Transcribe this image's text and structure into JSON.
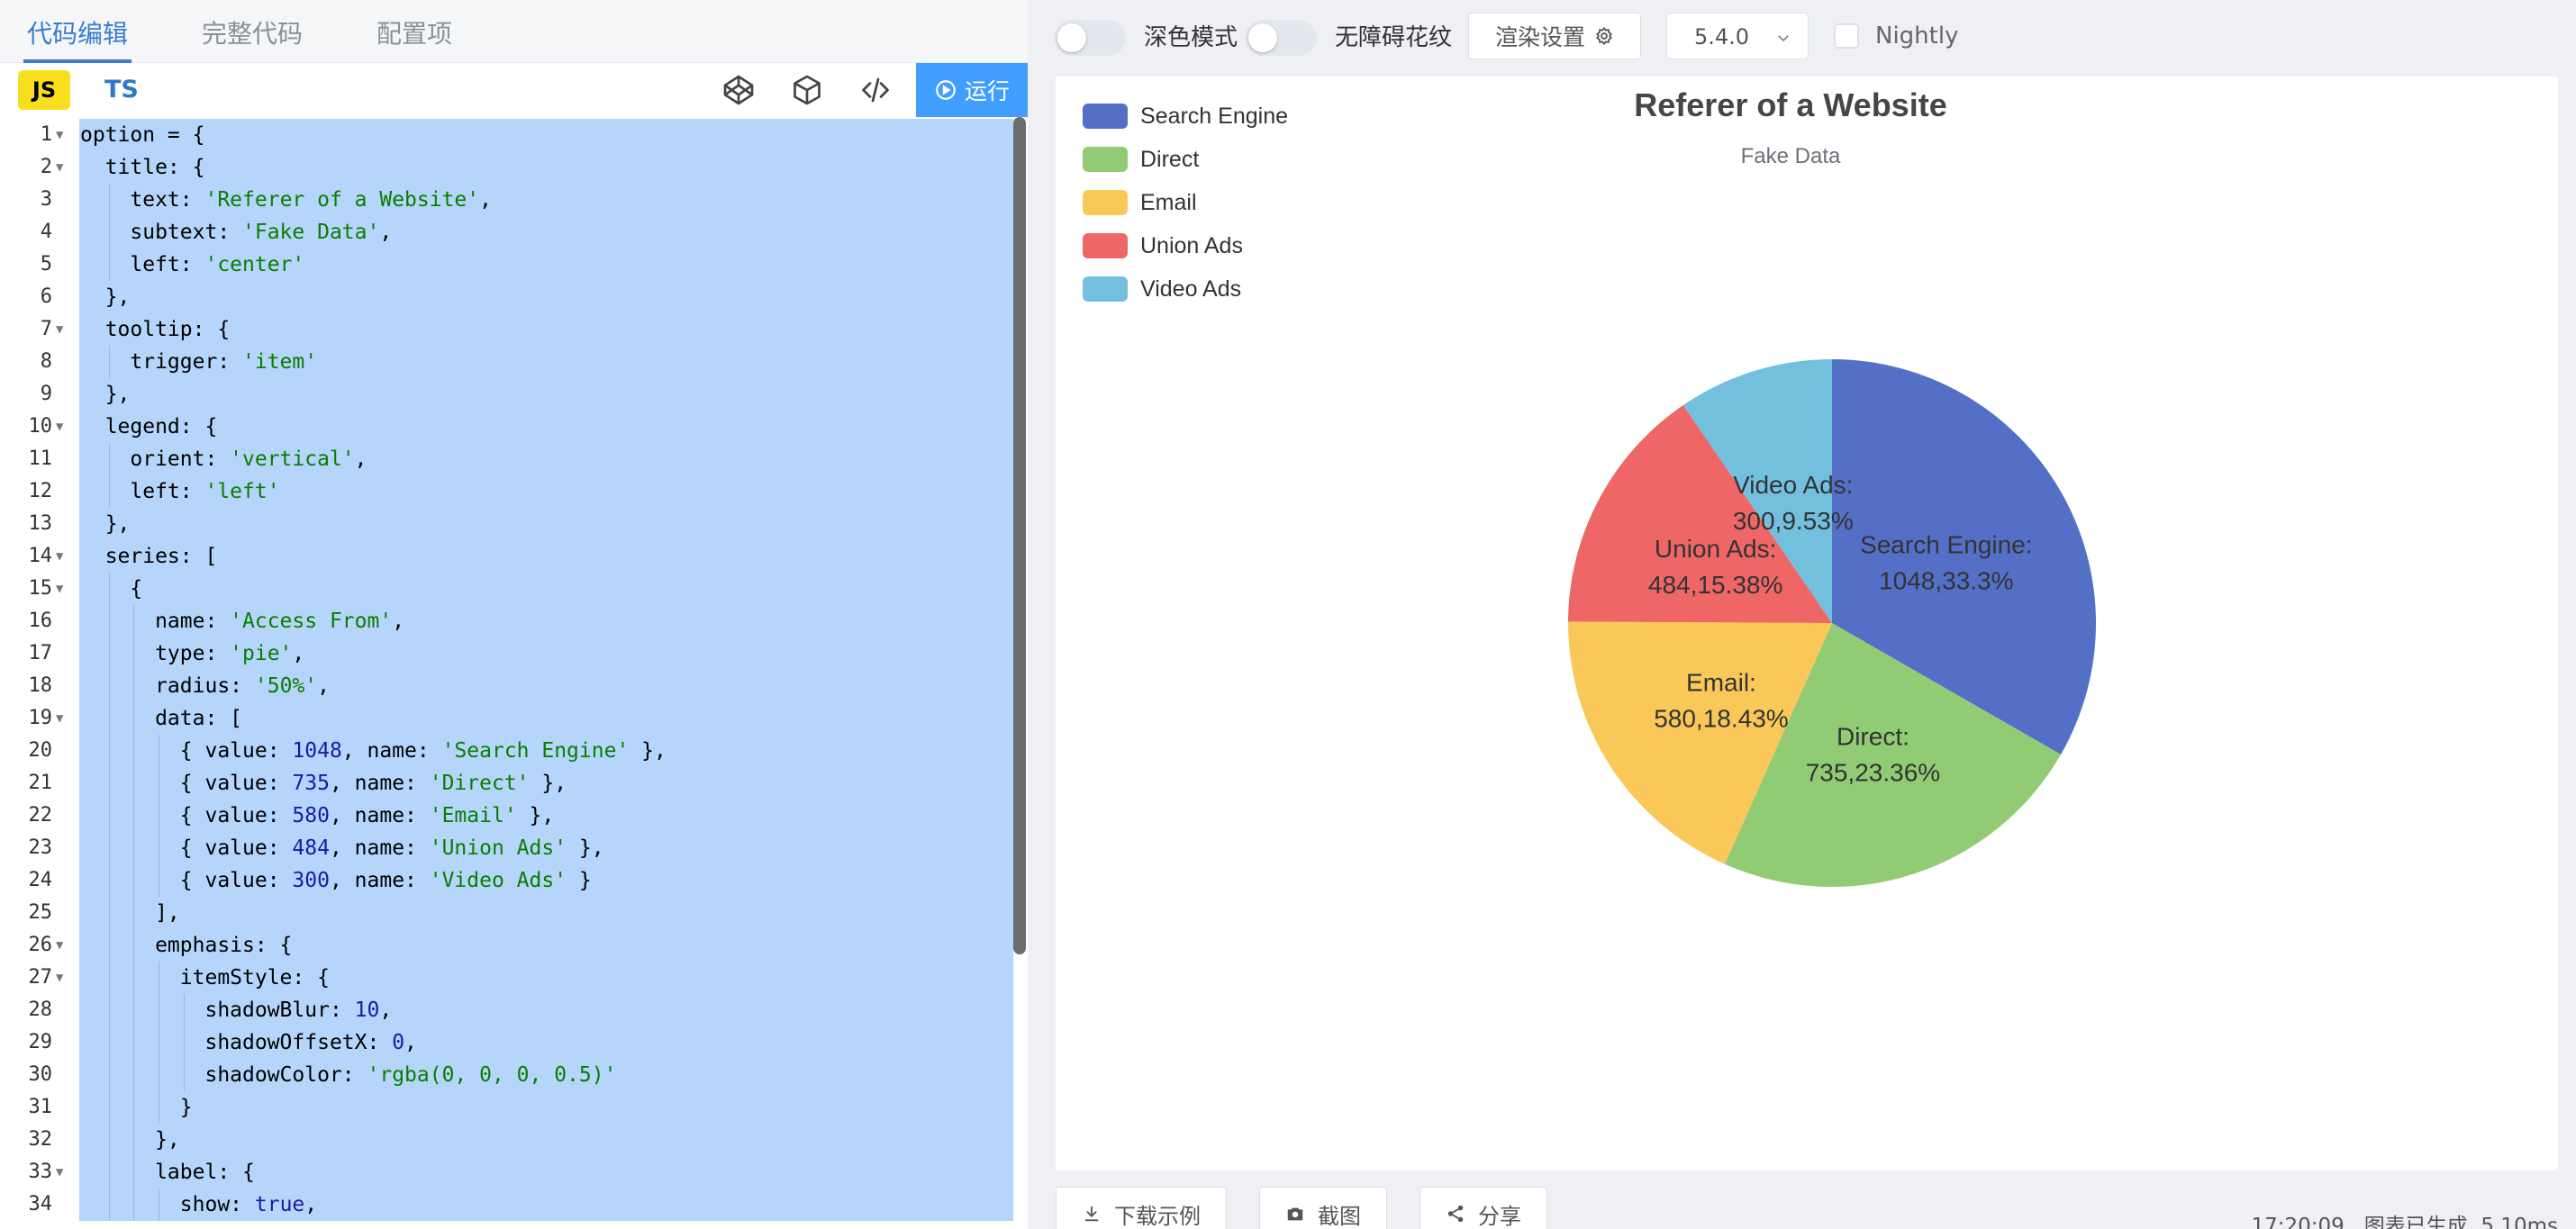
{
  "editor_tabs": [
    "代码编辑",
    "完整代码",
    "配置项"
  ],
  "lang": {
    "js": "JS",
    "ts": "TS"
  },
  "run_label": "运行",
  "code_lines": [
    [
      [
        "k",
        "option = {"
      ]
    ],
    [
      [
        "k",
        "  title: {"
      ]
    ],
    [
      [
        "k",
        "    text: "
      ],
      [
        "s",
        "'Referer of a Website'"
      ],
      [
        "k",
        ","
      ]
    ],
    [
      [
        "k",
        "    subtext: "
      ],
      [
        "s",
        "'Fake Data'"
      ],
      [
        "k",
        ","
      ]
    ],
    [
      [
        "k",
        "    left: "
      ],
      [
        "s",
        "'center'"
      ]
    ],
    [
      [
        "k",
        "  },"
      ]
    ],
    [
      [
        "k",
        "  tooltip: {"
      ]
    ],
    [
      [
        "k",
        "    trigger: "
      ],
      [
        "s",
        "'item'"
      ]
    ],
    [
      [
        "k",
        "  },"
      ]
    ],
    [
      [
        "k",
        "  legend: {"
      ]
    ],
    [
      [
        "k",
        "    orient: "
      ],
      [
        "s",
        "'vertical'"
      ],
      [
        "k",
        ","
      ]
    ],
    [
      [
        "k",
        "    left: "
      ],
      [
        "s",
        "'left'"
      ]
    ],
    [
      [
        "k",
        "  },"
      ]
    ],
    [
      [
        "k",
        "  series: ["
      ]
    ],
    [
      [
        "k",
        "    {"
      ]
    ],
    [
      [
        "k",
        "      name: "
      ],
      [
        "s",
        "'Access From'"
      ],
      [
        "k",
        ","
      ]
    ],
    [
      [
        "k",
        "      type: "
      ],
      [
        "s",
        "'pie'"
      ],
      [
        "k",
        ","
      ]
    ],
    [
      [
        "k",
        "      radius: "
      ],
      [
        "s",
        "'50%'"
      ],
      [
        "k",
        ","
      ]
    ],
    [
      [
        "k",
        "      data: ["
      ]
    ],
    [
      [
        "k",
        "        { value: "
      ],
      [
        "n",
        "1048"
      ],
      [
        "k",
        ", name: "
      ],
      [
        "s",
        "'Search Engine'"
      ],
      [
        "k",
        " },"
      ]
    ],
    [
      [
        "k",
        "        { value: "
      ],
      [
        "n",
        "735"
      ],
      [
        "k",
        ", name: "
      ],
      [
        "s",
        "'Direct'"
      ],
      [
        "k",
        " },"
      ]
    ],
    [
      [
        "k",
        "        { value: "
      ],
      [
        "n",
        "580"
      ],
      [
        "k",
        ", name: "
      ],
      [
        "s",
        "'Email'"
      ],
      [
        "k",
        " },"
      ]
    ],
    [
      [
        "k",
        "        { value: "
      ],
      [
        "n",
        "484"
      ],
      [
        "k",
        ", name: "
      ],
      [
        "s",
        "'Union Ads'"
      ],
      [
        "k",
        " },"
      ]
    ],
    [
      [
        "k",
        "        { value: "
      ],
      [
        "n",
        "300"
      ],
      [
        "k",
        ", name: "
      ],
      [
        "s",
        "'Video Ads'"
      ],
      [
        "k",
        " }"
      ]
    ],
    [
      [
        "k",
        "      ],"
      ]
    ],
    [
      [
        "k",
        "      emphasis: {"
      ]
    ],
    [
      [
        "k",
        "        itemStyle: {"
      ]
    ],
    [
      [
        "k",
        "          shadowBlur: "
      ],
      [
        "n",
        "10"
      ],
      [
        "k",
        ","
      ]
    ],
    [
      [
        "k",
        "          shadowOffsetX: "
      ],
      [
        "n",
        "0"
      ],
      [
        "k",
        ","
      ]
    ],
    [
      [
        "k",
        "          shadowColor: "
      ],
      [
        "s",
        "'rgba(0, 0, 0, 0.5)'"
      ]
    ],
    [
      [
        "k",
        "        }"
      ]
    ],
    [
      [
        "k",
        "      },"
      ]
    ],
    [
      [
        "k",
        "      label: {"
      ]
    ],
    [
      [
        "k",
        "        show: "
      ],
      [
        "b",
        "true"
      ],
      [
        "k",
        ","
      ]
    ]
  ],
  "fold_lines": [
    1,
    2,
    7,
    10,
    14,
    15,
    19,
    26,
    27,
    33
  ],
  "toolbar": {
    "dark_mode_label": "深色模式",
    "accessibility_label": "无障碍花纹",
    "render_settings_label": "渲染设置",
    "version": "5.4.0",
    "nightly_label": "Nightly"
  },
  "footer": {
    "download_label": "下载示例",
    "screenshot_label": "截图",
    "share_label": "分享",
    "time": "17:20:09",
    "status": "图表已生成, 5.10ms"
  },
  "chart_data": {
    "type": "pie",
    "title": "Referer of a Website",
    "subtitle": "Fake Data",
    "legend_position": "left",
    "colors": [
      "#5470c6",
      "#91cc75",
      "#fac858",
      "#ee6666",
      "#73c0de"
    ],
    "series": [
      {
        "name": "Access From",
        "data": [
          {
            "name": "Search Engine",
            "value": 1048,
            "label": "Search Engine:\n1048,33.3%"
          },
          {
            "name": "Direct",
            "value": 735,
            "label": "Direct:\n735,23.36%"
          },
          {
            "name": "Email",
            "value": 580,
            "label": "Email:\n580,18.43%"
          },
          {
            "name": "Union Ads",
            "value": 484,
            "label": "Union Ads:\n484,15.38%"
          },
          {
            "name": "Video Ads",
            "value": 300,
            "label": "Video Ads:\n300,9.53%"
          }
        ]
      }
    ]
  }
}
